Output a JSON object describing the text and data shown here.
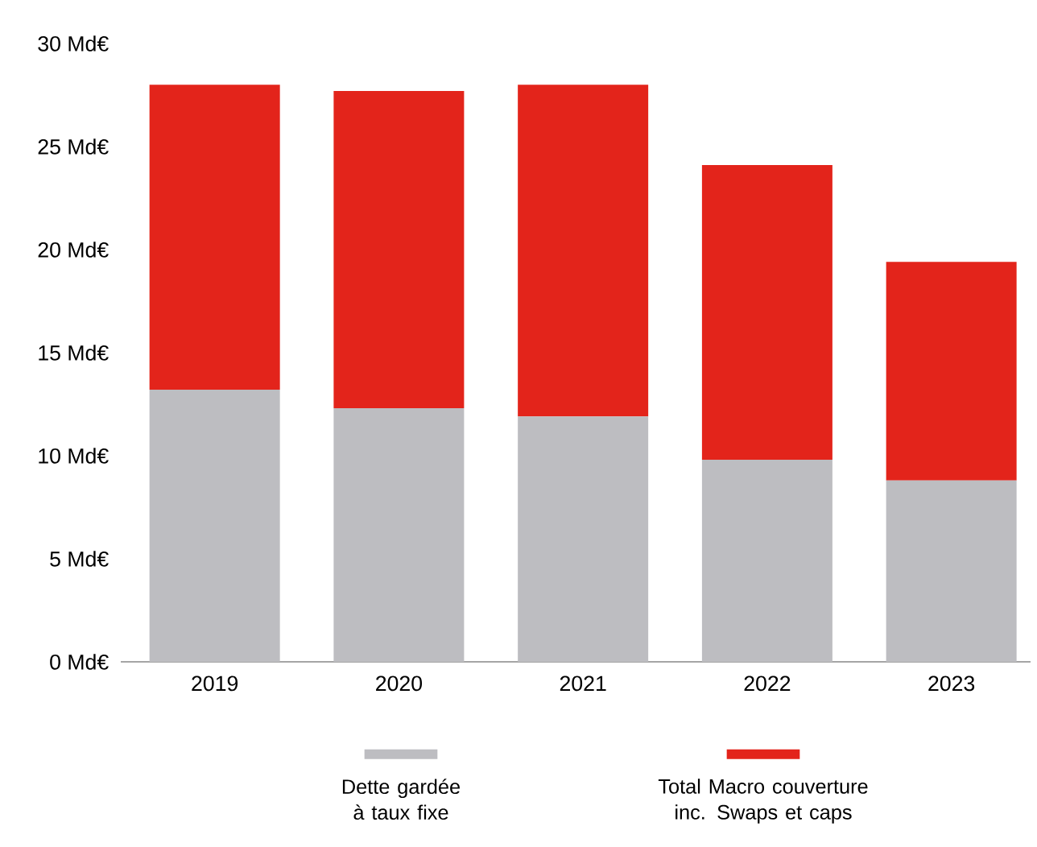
{
  "chart_data": {
    "type": "bar",
    "stacked": true,
    "categories": [
      "2019",
      "2020",
      "2021",
      "2022",
      "2023"
    ],
    "series": [
      {
        "name": "Dette gardée à taux fixe",
        "color": "#bdbdc1",
        "values": [
          13.2,
          12.3,
          11.9,
          9.8,
          8.8
        ]
      },
      {
        "name": "Total Macro couverture inc. Swaps et caps",
        "color": "#e3241b",
        "values": [
          14.8,
          15.4,
          16.1,
          14.3,
          10.6
        ]
      }
    ],
    "ylim": [
      0,
      30
    ],
    "yticks": [
      {
        "value": 0,
        "label": "0 Md€"
      },
      {
        "value": 5,
        "label": "5 Md€"
      },
      {
        "value": 10,
        "label": "10 Md€"
      },
      {
        "value": 15,
        "label": "15 Md€"
      },
      {
        "value": 20,
        "label": "20 Md€"
      },
      {
        "value": 25,
        "label": "25 Md€"
      },
      {
        "value": 30,
        "label": "30 Md€"
      }
    ],
    "grid": false,
    "legend": "bottom"
  }
}
